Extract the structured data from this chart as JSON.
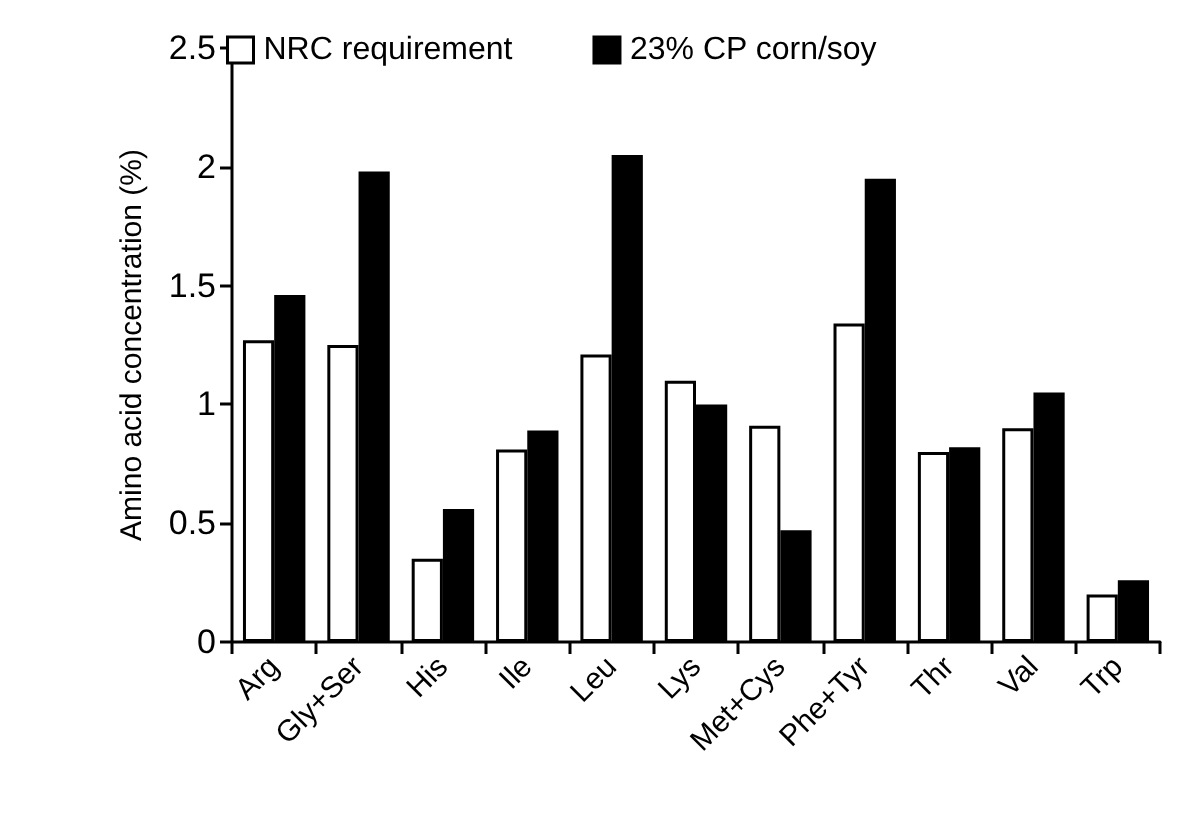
{
  "chart_data": {
    "type": "bar",
    "ylabel": "Amino acid concentration (%)",
    "categories": [
      "Arg",
      "Gly+Ser",
      "His",
      "Ile",
      "Leu",
      "Lys",
      "Met+Cys",
      "Phe+Tyr",
      "Thr",
      "Val",
      "Trp"
    ],
    "series": [
      {
        "name": "NRC requirement",
        "color": "#ffffff",
        "values": [
          1.27,
          1.25,
          0.35,
          0.81,
          1.21,
          1.1,
          0.91,
          1.34,
          0.8,
          0.9,
          0.2
        ]
      },
      {
        "name": "23% CP corn/soy",
        "color": "#000000",
        "values": [
          1.46,
          1.98,
          0.56,
          0.89,
          2.05,
          1.0,
          0.47,
          1.95,
          0.82,
          1.05,
          0.26
        ]
      }
    ],
    "ylim": [
      0,
      2.5
    ],
    "yticks": [
      0,
      0.5,
      1,
      1.5,
      2,
      2.5
    ],
    "grid": false,
    "legend": "top"
  }
}
